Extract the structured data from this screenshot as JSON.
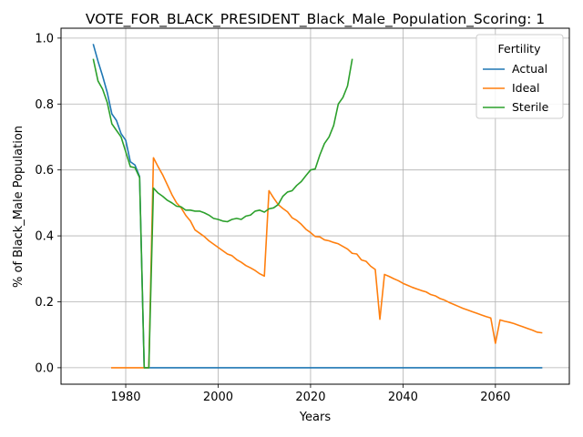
{
  "chart_data": {
    "type": "line",
    "title": "VOTE_FOR_BLACK_PRESIDENT_Black_Male_Population_Scoring: 1",
    "xlabel": "Years",
    "ylabel": "% of Black_Male Population",
    "xlim": [
      1966,
      2076
    ],
    "ylim": [
      -0.05,
      1.03
    ],
    "xticks": [
      1980,
      2000,
      2020,
      2040,
      2060
    ],
    "yticks": [
      0.0,
      0.2,
      0.4,
      0.6,
      0.8,
      1.0
    ],
    "xtick_labels": [
      "1980",
      "2000",
      "2020",
      "2040",
      "2060"
    ],
    "ytick_labels": [
      "0.0",
      "0.2",
      "0.4",
      "0.6",
      "0.8",
      "1.0"
    ],
    "grid": true,
    "legend": {
      "title": "Fertility",
      "placement": "top-right"
    },
    "series": [
      {
        "name": "Actual",
        "color": "#1f77b4",
        "points": [
          [
            1973,
            0.98
          ],
          [
            1974,
            0.93
          ],
          [
            1975,
            0.885
          ],
          [
            1976,
            0.835
          ],
          [
            1977,
            0.77
          ],
          [
            1978,
            0.75
          ],
          [
            1979,
            0.71
          ],
          [
            1980,
            0.69
          ],
          [
            1981,
            0.625
          ],
          [
            1982,
            0.615
          ],
          [
            1983,
            0.58
          ],
          [
            1984,
            0.0
          ],
          [
            1985,
            0.0
          ],
          [
            2000,
            0.0
          ],
          [
            2020,
            0.0
          ],
          [
            2040,
            0.0
          ],
          [
            2060,
            0.0
          ],
          [
            2070,
            0.0
          ]
        ]
      },
      {
        "name": "Ideal",
        "color": "#ff7f0e",
        "points": [
          [
            1977,
            0.0
          ],
          [
            1985,
            0.0
          ],
          [
            1986,
            0.637
          ],
          [
            1987,
            0.61
          ],
          [
            1988,
            0.585
          ],
          [
            1989,
            0.555
          ],
          [
            1990,
            0.525
          ],
          [
            1991,
            0.5
          ],
          [
            1992,
            0.485
          ],
          [
            1993,
            0.462
          ],
          [
            1994,
            0.445
          ],
          [
            1995,
            0.418
          ],
          [
            1996,
            0.408
          ],
          [
            1997,
            0.398
          ],
          [
            1998,
            0.385
          ],
          [
            1999,
            0.375
          ],
          [
            2000,
            0.365
          ],
          [
            2001,
            0.355
          ],
          [
            2002,
            0.345
          ],
          [
            2003,
            0.34
          ],
          [
            2004,
            0.328
          ],
          [
            2005,
            0.32
          ],
          [
            2006,
            0.31
          ],
          [
            2007,
            0.303
          ],
          [
            2008,
            0.295
          ],
          [
            2009,
            0.285
          ],
          [
            2010,
            0.278
          ],
          [
            2011,
            0.537
          ],
          [
            2012,
            0.515
          ],
          [
            2013,
            0.495
          ],
          [
            2014,
            0.483
          ],
          [
            2015,
            0.473
          ],
          [
            2016,
            0.455
          ],
          [
            2017,
            0.447
          ],
          [
            2018,
            0.435
          ],
          [
            2019,
            0.42
          ],
          [
            2020,
            0.41
          ],
          [
            2021,
            0.398
          ],
          [
            2022,
            0.397
          ],
          [
            2023,
            0.388
          ],
          [
            2024,
            0.385
          ],
          [
            2025,
            0.38
          ],
          [
            2026,
            0.376
          ],
          [
            2027,
            0.368
          ],
          [
            2028,
            0.36
          ],
          [
            2029,
            0.347
          ],
          [
            2030,
            0.345
          ],
          [
            2031,
            0.327
          ],
          [
            2032,
            0.323
          ],
          [
            2033,
            0.308
          ],
          [
            2034,
            0.298
          ],
          [
            2035,
            0.147
          ],
          [
            2036,
            0.283
          ],
          [
            2037,
            0.277
          ],
          [
            2038,
            0.27
          ],
          [
            2039,
            0.264
          ],
          [
            2040,
            0.256
          ],
          [
            2041,
            0.25
          ],
          [
            2042,
            0.244
          ],
          [
            2043,
            0.239
          ],
          [
            2044,
            0.234
          ],
          [
            2045,
            0.23
          ],
          [
            2046,
            0.222
          ],
          [
            2047,
            0.218
          ],
          [
            2048,
            0.21
          ],
          [
            2049,
            0.205
          ],
          [
            2050,
            0.198
          ],
          [
            2051,
            0.192
          ],
          [
            2052,
            0.186
          ],
          [
            2053,
            0.18
          ],
          [
            2054,
            0.175
          ],
          [
            2055,
            0.17
          ],
          [
            2056,
            0.165
          ],
          [
            2057,
            0.16
          ],
          [
            2058,
            0.155
          ],
          [
            2059,
            0.151
          ],
          [
            2060,
            0.074
          ],
          [
            2061,
            0.145
          ],
          [
            2062,
            0.141
          ],
          [
            2063,
            0.138
          ],
          [
            2064,
            0.134
          ],
          [
            2065,
            0.129
          ],
          [
            2066,
            0.124
          ],
          [
            2067,
            0.119
          ],
          [
            2068,
            0.114
          ],
          [
            2069,
            0.108
          ],
          [
            2070,
            0.106
          ]
        ]
      },
      {
        "name": "Sterile",
        "color": "#2ca02c",
        "points": [
          [
            1973,
            0.935
          ],
          [
            1974,
            0.87
          ],
          [
            1975,
            0.845
          ],
          [
            1976,
            0.805
          ],
          [
            1977,
            0.74
          ],
          [
            1978,
            0.72
          ],
          [
            1979,
            0.7
          ],
          [
            1980,
            0.655
          ],
          [
            1981,
            0.61
          ],
          [
            1982,
            0.607
          ],
          [
            1983,
            0.577
          ],
          [
            1984,
            0.0
          ],
          [
            1985,
            0.0
          ],
          [
            1986,
            0.545
          ],
          [
            1987,
            0.53
          ],
          [
            1988,
            0.52
          ],
          [
            1989,
            0.508
          ],
          [
            1990,
            0.5
          ],
          [
            1991,
            0.49
          ],
          [
            1992,
            0.488
          ],
          [
            1993,
            0.478
          ],
          [
            1994,
            0.478
          ],
          [
            1995,
            0.475
          ],
          [
            1996,
            0.475
          ],
          [
            1997,
            0.47
          ],
          [
            1998,
            0.463
          ],
          [
            1999,
            0.453
          ],
          [
            2000,
            0.45
          ],
          [
            2001,
            0.445
          ],
          [
            2002,
            0.443
          ],
          [
            2003,
            0.45
          ],
          [
            2004,
            0.453
          ],
          [
            2005,
            0.45
          ],
          [
            2006,
            0.46
          ],
          [
            2007,
            0.463
          ],
          [
            2008,
            0.475
          ],
          [
            2009,
            0.478
          ],
          [
            2010,
            0.472
          ],
          [
            2011,
            0.482
          ],
          [
            2012,
            0.485
          ],
          [
            2013,
            0.495
          ],
          [
            2014,
            0.52
          ],
          [
            2015,
            0.533
          ],
          [
            2016,
            0.537
          ],
          [
            2017,
            0.553
          ],
          [
            2018,
            0.565
          ],
          [
            2019,
            0.583
          ],
          [
            2020,
            0.6
          ],
          [
            2021,
            0.603
          ],
          [
            2022,
            0.645
          ],
          [
            2023,
            0.68
          ],
          [
            2024,
            0.7
          ],
          [
            2025,
            0.735
          ],
          [
            2026,
            0.8
          ],
          [
            2027,
            0.82
          ],
          [
            2028,
            0.855
          ],
          [
            2029,
            0.935
          ]
        ]
      }
    ]
  }
}
